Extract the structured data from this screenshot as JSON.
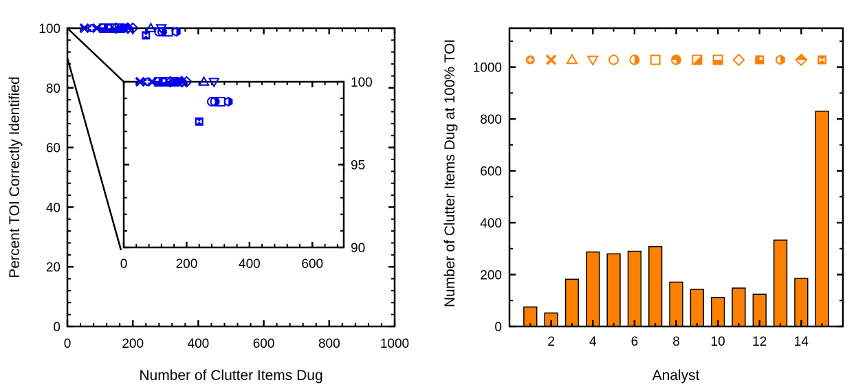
{
  "colors": {
    "scatter": "#0000ee",
    "bar": "#ff8000",
    "axis": "#000000"
  },
  "chart_data": [
    {
      "type": "scatter",
      "xlabel": "Number of Clutter Items Dug",
      "ylabel": "Percent TOI Correctly Identified",
      "xlim": [
        0,
        1000
      ],
      "ylim": [
        0,
        100
      ],
      "xticks": [
        "0",
        "200",
        "400",
        "600",
        "800",
        "1000"
      ],
      "yticks": [
        "0",
        "20",
        "40",
        "60",
        "80",
        "100"
      ],
      "points": [
        {
          "x": 75,
          "y": 100,
          "marker": "circle-plus"
        },
        {
          "x": 52,
          "y": 100,
          "marker": "x"
        },
        {
          "x": 182,
          "y": 100,
          "marker": "triangle-up"
        },
        {
          "x": 287,
          "y": 100,
          "marker": "triangle-down"
        },
        {
          "x": 280,
          "y": 98.8,
          "marker": "circle"
        },
        {
          "x": 290,
          "y": 98.8,
          "marker": "half-circle"
        },
        {
          "x": 308,
          "y": 98.8,
          "marker": "square"
        },
        {
          "x": 171,
          "y": 100,
          "marker": "quarter-circle"
        },
        {
          "x": 143,
          "y": 100,
          "marker": "half-square"
        },
        {
          "x": 112,
          "y": 100,
          "marker": "half-square-h"
        },
        {
          "x": 148,
          "y": 100,
          "marker": "diamond"
        },
        {
          "x": 124,
          "y": 100,
          "marker": "checker-square"
        },
        {
          "x": 333,
          "y": 98.8,
          "marker": "half-hexagon"
        },
        {
          "x": 185,
          "y": 100,
          "marker": "half-diamond"
        },
        {
          "x": 240,
          "y": 97.6,
          "marker": "bowtie-square"
        },
        {
          "x": 90,
          "y": 100,
          "marker": "x"
        },
        {
          "x": 160,
          "y": 100,
          "marker": "half-square"
        },
        {
          "x": 200,
          "y": 100,
          "marker": "diamond"
        },
        {
          "x": 255,
          "y": 100,
          "marker": "triangle-up"
        }
      ],
      "inset": {
        "xlim": [
          0,
          700
        ],
        "ylim": [
          90,
          100
        ],
        "xticks": [
          "0",
          "200",
          "400",
          "600"
        ],
        "yticks": [
          "90",
          "95",
          "100"
        ]
      }
    },
    {
      "type": "bar",
      "xlabel": "Analyst",
      "ylabel": "Number of Clutter Items Dug at 100% TOI",
      "xlim": [
        0,
        16
      ],
      "ylim": [
        0,
        1150
      ],
      "xticks": [
        "2",
        "4",
        "6",
        "8",
        "10",
        "12",
        "14"
      ],
      "yticks": [
        "0",
        "200",
        "400",
        "600",
        "800",
        "1000"
      ],
      "categories": [
        1,
        2,
        3,
        4,
        5,
        6,
        7,
        8,
        9,
        10,
        11,
        12,
        13,
        14,
        15
      ],
      "values": [
        75,
        52,
        182,
        287,
        280,
        290,
        308,
        171,
        143,
        112,
        148,
        124,
        333,
        185,
        830
      ],
      "markers": [
        "circle-plus",
        "x",
        "triangle-up",
        "triangle-down",
        "circle",
        "half-circle",
        "square",
        "quarter-circle",
        "half-square",
        "half-square-h",
        "diamond",
        "checker-square",
        "half-hexagon",
        "half-diamond",
        "bowtie-square"
      ],
      "marker_y": 1028
    }
  ]
}
